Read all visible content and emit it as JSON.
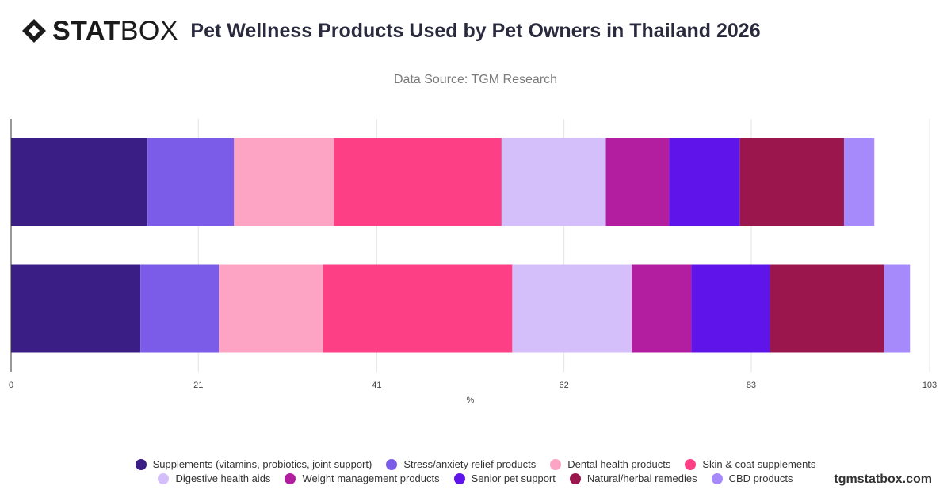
{
  "brand": {
    "logo_bold": "STAT",
    "logo_light": "BOX",
    "watermark": "tgmstatbox.com"
  },
  "header": {
    "title": "Pet Wellness Products Used by Pet Owners in Thailand 2026",
    "subtitle": "Data Source: TGM Research"
  },
  "chart_data": {
    "type": "bar",
    "orientation": "horizontal",
    "stacked": true,
    "title": "Pet Wellness Products Used by Pet Owners in Thailand 2026",
    "subtitle": "Data Source: TGM Research",
    "xlabel": "%",
    "ylabel": "",
    "xlim": [
      0,
      103
    ],
    "xticks": [
      0,
      21,
      41,
      62,
      83,
      103
    ],
    "grid": true,
    "legend_position": "bottom",
    "categories": [
      "",
      ""
    ],
    "series": [
      {
        "name": "Supplements (vitamins, probiotics, joint support)",
        "color": "#3a1e86",
        "values": [
          15.3,
          14.5
        ]
      },
      {
        "name": "Stress/anxiety relief products",
        "color": "#7b5ce9",
        "values": [
          9.7,
          8.8
        ]
      },
      {
        "name": "Dental health products",
        "color": "#fda4c4",
        "values": [
          11.2,
          11.7
        ]
      },
      {
        "name": "Skin & coat supplements",
        "color": "#fd3f85",
        "values": [
          18.8,
          21.2
        ]
      },
      {
        "name": "Digestive health aids",
        "color": "#d4bffb",
        "values": [
          11.7,
          13.4
        ]
      },
      {
        "name": "Weight management products",
        "color": "#b31ea1",
        "values": [
          7.1,
          6.7
        ]
      },
      {
        "name": "Senior pet support",
        "color": "#5f14ea",
        "values": [
          7.9,
          8.8
        ]
      },
      {
        "name": "Natural/herbal remedies",
        "color": "#9c164e",
        "values": [
          11.7,
          12.8
        ]
      },
      {
        "name": "CBD products",
        "color": "#a68afc",
        "values": [
          3.4,
          2.9
        ]
      }
    ]
  }
}
